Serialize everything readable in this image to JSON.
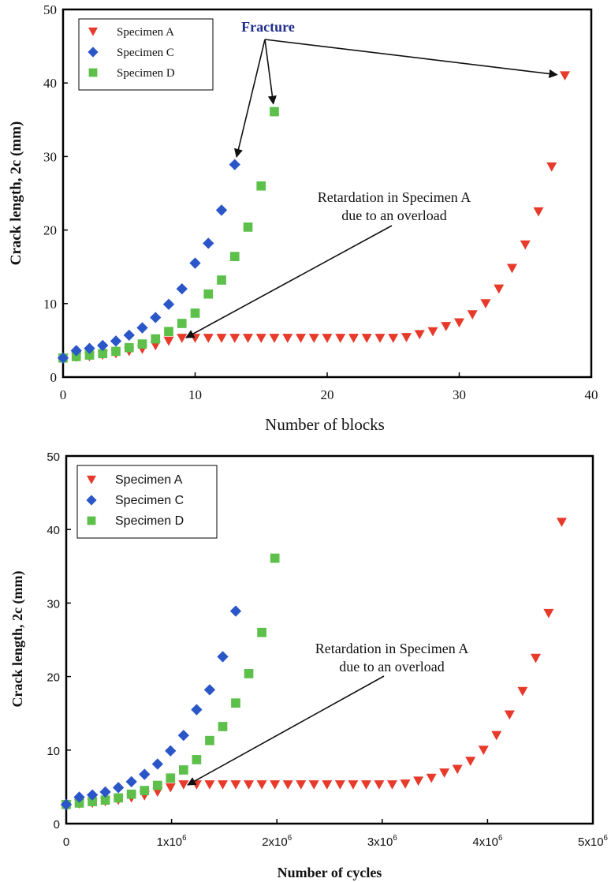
{
  "chart_data": [
    {
      "type": "scatter",
      "xlabel": "Number of blocks",
      "ylabel": "Crack length, 2c (mm)",
      "xlim": [
        0,
        40
      ],
      "ylim": [
        0,
        50
      ],
      "xticks": [
        "0",
        "10",
        "20",
        "30",
        "40"
      ],
      "yticks": [
        "0",
        "10",
        "20",
        "30",
        "40",
        "50"
      ],
      "grid": false,
      "legend_position": "top-left",
      "series": [
        {
          "name": "Specimen A",
          "marker": "triangle-down",
          "color": "#e83a2a",
          "x": [
            0,
            1,
            2,
            3,
            4,
            5,
            6,
            7,
            8,
            9,
            10,
            11,
            12,
            13,
            14,
            15,
            16,
            17,
            18,
            19,
            20,
            21,
            22,
            23,
            24,
            25,
            26,
            27,
            28,
            29,
            30,
            31,
            32,
            33,
            34,
            35,
            36,
            37,
            38
          ],
          "y": [
            2.6,
            2.7,
            2.8,
            3.0,
            3.2,
            3.5,
            3.8,
            4.3,
            4.9,
            5.3,
            5.3,
            5.3,
            5.3,
            5.3,
            5.3,
            5.3,
            5.3,
            5.3,
            5.3,
            5.3,
            5.3,
            5.3,
            5.3,
            5.3,
            5.3,
            5.3,
            5.4,
            5.8,
            6.2,
            6.9,
            7.4,
            8.5,
            10.0,
            12.0,
            14.8,
            18.0,
            22.5,
            28.6,
            41.0
          ]
        },
        {
          "name": "Specimen C",
          "marker": "diamond",
          "color": "#2a56c8",
          "x": [
            0,
            1,
            2,
            3,
            4,
            5,
            6,
            7,
            8,
            9,
            10,
            11,
            12,
            13
          ],
          "y": [
            2.6,
            3.6,
            3.9,
            4.3,
            4.9,
            5.7,
            6.7,
            8.1,
            9.9,
            12.0,
            15.5,
            18.2,
            22.7,
            28.9
          ]
        },
        {
          "name": "Specimen D",
          "marker": "square",
          "color": "#5cc04a",
          "x": [
            0,
            1,
            2,
            3,
            4,
            5,
            6,
            7,
            8,
            9,
            10,
            11,
            12,
            13,
            14,
            15,
            16
          ],
          "y": [
            2.6,
            2.8,
            3.0,
            3.2,
            3.5,
            4.0,
            4.5,
            5.2,
            6.2,
            7.3,
            8.7,
            11.3,
            13.2,
            16.4,
            20.4,
            26.0,
            36.1
          ]
        }
      ],
      "annotations": [
        {
          "text": "Fracture",
          "color": "#1f2d8c",
          "points_to": [
            [
              13,
              28.9
            ],
            [
              16,
              36.1
            ],
            [
              38,
              41.0
            ]
          ]
        },
        {
          "lines": [
            "Retardation in Specimen  A",
            "due to an overload"
          ],
          "points_to": [
            9,
            5.3
          ]
        }
      ]
    },
    {
      "type": "scatter",
      "xlabel": "Number of cycles",
      "ylabel": "Crack length, 2c (mm)",
      "xlim": [
        0,
        5000000
      ],
      "ylim": [
        0,
        50
      ],
      "xticks": [
        "0",
        "1x10",
        "2x10",
        "3x10",
        "4x10",
        "5x10"
      ],
      "xtick_exponent": "6",
      "yticks": [
        "0",
        "10",
        "20",
        "30",
        "40",
        "50"
      ],
      "grid": false,
      "legend_position": "top-left",
      "series": [
        {
          "name": "Specimen A",
          "marker": "triangle-down",
          "color": "#e83a2a",
          "x": [
            0,
            124000,
            248000,
            371000,
            495000,
            619000,
            743000,
            867000,
            990000,
            1114000,
            1238000,
            1362000,
            1486000,
            1609000,
            1733000,
            1857000,
            1981000,
            2105000,
            2229000,
            2352000,
            2476000,
            2600000,
            2724000,
            2848000,
            2971000,
            3095000,
            3219000,
            3343000,
            3467000,
            3590000,
            3714000,
            3838000,
            3962000,
            4085000,
            4209000,
            4333000,
            4457000,
            4580000,
            4704000
          ],
          "y": [
            2.6,
            2.7,
            2.8,
            3.0,
            3.2,
            3.5,
            3.8,
            4.3,
            4.9,
            5.3,
            5.3,
            5.3,
            5.3,
            5.3,
            5.3,
            5.3,
            5.3,
            5.3,
            5.3,
            5.3,
            5.3,
            5.3,
            5.3,
            5.3,
            5.3,
            5.3,
            5.4,
            5.8,
            6.2,
            6.9,
            7.4,
            8.5,
            10.0,
            12.0,
            14.8,
            18.0,
            22.5,
            28.6,
            41.0
          ]
        },
        {
          "name": "Specimen C",
          "marker": "diamond",
          "color": "#2a56c8",
          "x": [
            0,
            124000,
            248000,
            371000,
            495000,
            619000,
            743000,
            867000,
            990000,
            1114000,
            1238000,
            1362000,
            1486000,
            1609000
          ],
          "y": [
            2.6,
            3.6,
            3.9,
            4.3,
            4.9,
            5.7,
            6.7,
            8.1,
            9.9,
            12.0,
            15.5,
            18.2,
            22.7,
            28.9
          ]
        },
        {
          "name": "Specimen D",
          "marker": "square",
          "color": "#5cc04a",
          "x": [
            0,
            124000,
            248000,
            371000,
            495000,
            619000,
            743000,
            867000,
            990000,
            1114000,
            1238000,
            1362000,
            1486000,
            1609000,
            1733000,
            1857000,
            1981000
          ],
          "y": [
            2.6,
            2.8,
            3.0,
            3.2,
            3.5,
            4.0,
            4.5,
            5.2,
            6.2,
            7.3,
            8.7,
            11.3,
            13.2,
            16.4,
            20.4,
            26.0,
            36.1
          ]
        }
      ],
      "annotations": [
        {
          "lines": [
            "Retardation in Specimen  A",
            "due to an overload"
          ],
          "points_to": [
            1114000,
            5.3
          ]
        }
      ]
    }
  ]
}
